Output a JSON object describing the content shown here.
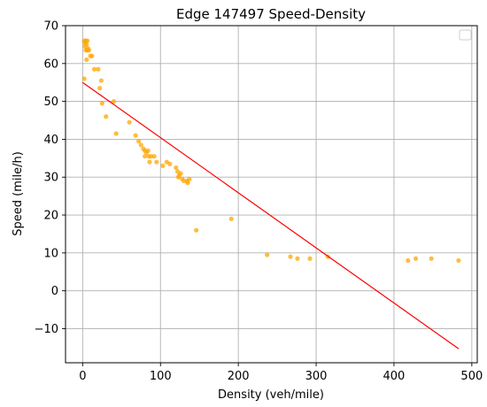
{
  "chart_data": {
    "type": "scatter",
    "title": "Edge 147497 Speed-Density",
    "xlabel": "Density (veh/mile)",
    "ylabel": "Speed (mile/h)",
    "xlim": [
      -22,
      507
    ],
    "ylim": [
      -19,
      70
    ],
    "xticks": [
      0,
      100,
      200,
      300,
      400,
      500
    ],
    "yticks": [
      -10,
      0,
      10,
      20,
      30,
      40,
      50,
      60,
      70
    ],
    "grid": true,
    "legend": "top-right, empty",
    "colors": {
      "points": "#ffa500",
      "fit_line": "#ff0000"
    },
    "series": [
      {
        "kind": "points",
        "values": [
          [
            2,
            66
          ],
          [
            3,
            65.5
          ],
          [
            4,
            66
          ],
          [
            3,
            64.5
          ],
          [
            5,
            65
          ],
          [
            4,
            63.5
          ],
          [
            6,
            66
          ],
          [
            7,
            64
          ],
          [
            6,
            63.5
          ],
          [
            8,
            63.5
          ],
          [
            5,
            61
          ],
          [
            10,
            62
          ],
          [
            12,
            62
          ],
          [
            15,
            58.5
          ],
          [
            20,
            58.5
          ],
          [
            2,
            56
          ],
          [
            24,
            55.5
          ],
          [
            22,
            53.5
          ],
          [
            25,
            49.5
          ],
          [
            30,
            46
          ],
          [
            40,
            50
          ],
          [
            43,
            41.5
          ],
          [
            60,
            44.5
          ],
          [
            68,
            41
          ],
          [
            72,
            39.5
          ],
          [
            75,
            38.5
          ],
          [
            78,
            37.5
          ],
          [
            80,
            37
          ],
          [
            82,
            36.5
          ],
          [
            84,
            37
          ],
          [
            80,
            35.5
          ],
          [
            85,
            35.5
          ],
          [
            88,
            35.5
          ],
          [
            92,
            35.5
          ],
          [
            86,
            34
          ],
          [
            95,
            34
          ],
          [
            103,
            33
          ],
          [
            108,
            34
          ],
          [
            112,
            33.5
          ],
          [
            120,
            32.5
          ],
          [
            122,
            31.5
          ],
          [
            124,
            30.5
          ],
          [
            126,
            31
          ],
          [
            123,
            30
          ],
          [
            128,
            29.5
          ],
          [
            130,
            29
          ],
          [
            135,
            28.5
          ],
          [
            134,
            29
          ],
          [
            137,
            29.5
          ],
          [
            146,
            16
          ],
          [
            191,
            19
          ],
          [
            237,
            9.5
          ],
          [
            267,
            9
          ],
          [
            276,
            8.5
          ],
          [
            292,
            8.5
          ],
          [
            315,
            9
          ],
          [
            418,
            8
          ],
          [
            428,
            8.5
          ],
          [
            448,
            8.5
          ],
          [
            483,
            8
          ]
        ]
      },
      {
        "kind": "line",
        "values": [
          [
            0,
            55
          ],
          [
            483,
            -15.3
          ]
        ]
      }
    ]
  }
}
